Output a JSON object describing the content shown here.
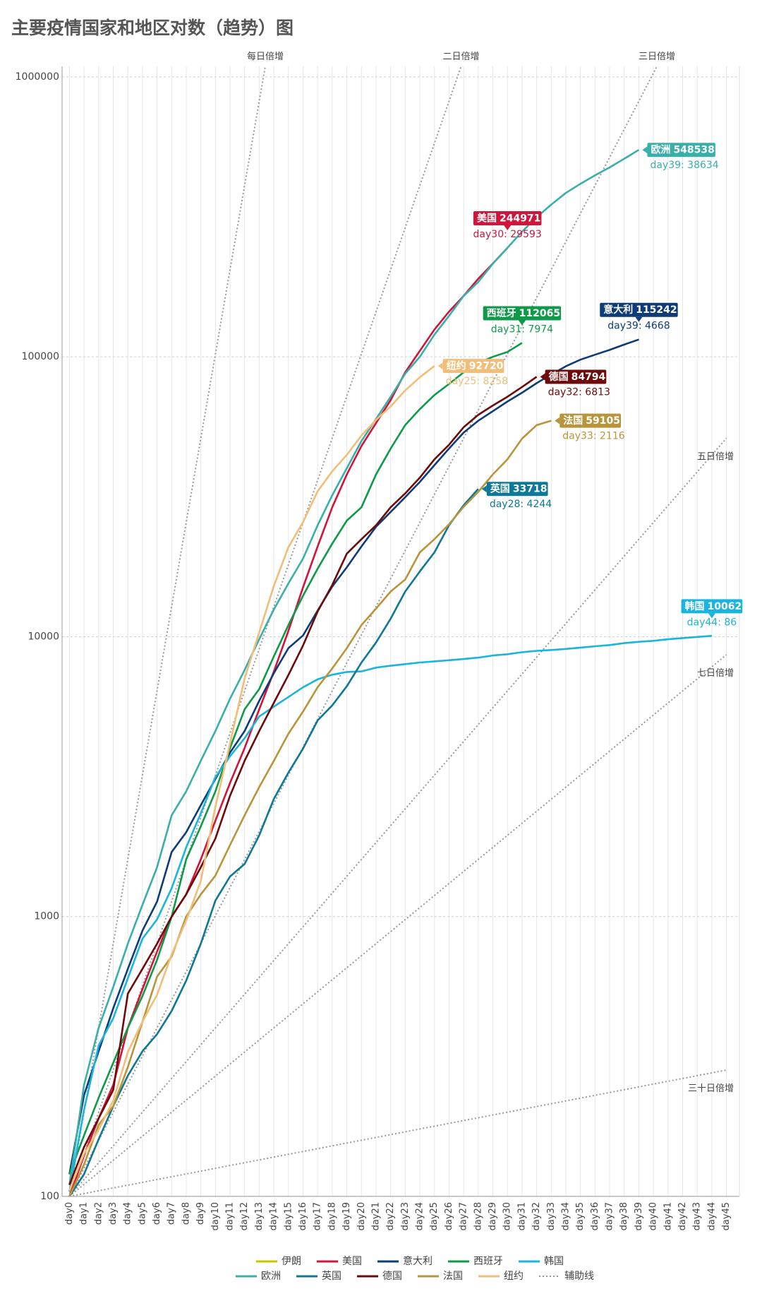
{
  "chart_data": {
    "type": "line",
    "title": "主要疫情国家和地区对数（趋势）图",
    "log_scale": true,
    "ylim": [
      100,
      1000000
    ],
    "yticks": [
      100,
      1000,
      10000,
      100000,
      1000000
    ],
    "grid": true,
    "categories": [
      "day0",
      "day1",
      "day2",
      "day3",
      "day4",
      "day5",
      "day6",
      "day7",
      "day8",
      "day9",
      "day10",
      "day11",
      "day12",
      "day13",
      "day14",
      "day15",
      "day16",
      "day17",
      "day18",
      "day19",
      "day20",
      "day21",
      "day22",
      "day23",
      "day24",
      "day25",
      "day26",
      "day27",
      "day28",
      "day29",
      "day30",
      "day31",
      "day32",
      "day33",
      "day34",
      "day35",
      "day36",
      "day37",
      "day38",
      "day39",
      "day40",
      "day41",
      "day42",
      "day43",
      "day44",
      "day45"
    ],
    "series": [
      {
        "name": "伊朗",
        "color": "#c8c400",
        "values": [
          null,
          null,
          null,
          null,
          null,
          null,
          null,
          null,
          null,
          null,
          null,
          null,
          null,
          null,
          null,
          null,
          null,
          null,
          null,
          null,
          null,
          null,
          null,
          null,
          null,
          null,
          null,
          null,
          null,
          null,
          null,
          null,
          null,
          null,
          null,
          null,
          null,
          null,
          null,
          null,
          null,
          null,
          null,
          null,
          null,
          null
        ]
      },
      {
        "name": "美国",
        "color": "#d2143a",
        "note": "day30: 29593",
        "values": [
          100,
          140,
          190,
          250,
          400,
          550,
          750,
          1000,
          1200,
          1600,
          2200,
          3000,
          4000,
          5500,
          7500,
          10500,
          15000,
          21000,
          29000,
          38000,
          48000,
          58000,
          70000,
          88000,
          105000,
          125000,
          145000,
          165000,
          190000,
          215378,
          244971,
          null,
          null,
          null,
          null,
          null,
          null,
          null,
          null,
          null,
          null,
          null,
          null,
          null,
          null,
          null
        ]
      },
      {
        "name": "意大利",
        "color": "#0d3c78",
        "note": "day39: 4668",
        "values": [
          120,
          230,
          330,
          470,
          650,
          890,
          1130,
          1700,
          2000,
          2500,
          3100,
          3850,
          4600,
          5900,
          7400,
          9100,
          10100,
          12400,
          15100,
          17700,
          21000,
          24700,
          27900,
          31500,
          35700,
          41000,
          47000,
          53600,
          59100,
          63900,
          69200,
          74400,
          80500,
          86500,
          92500,
          97700,
          101700,
          105800,
          110574,
          115242,
          null,
          null,
          null,
          null,
          null,
          null
        ]
      },
      {
        "name": "西班牙",
        "color": "#0f9a4a",
        "note": "day31: 7974",
        "values": [
          120,
          165,
          225,
          300,
          400,
          520,
          700,
          1000,
          1600,
          2100,
          2800,
          4000,
          5500,
          6500,
          8500,
          11000,
          14000,
          17500,
          21500,
          26000,
          29000,
          38000,
          47000,
          57000,
          65000,
          73000,
          80000,
          88000,
          95000,
          100000,
          104091,
          112065,
          null,
          null,
          null,
          null,
          null,
          null,
          null,
          null,
          null,
          null,
          null,
          null,
          null,
          null
        ]
      },
      {
        "name": "韩国",
        "color": "#1ab4dc",
        "note": "day44: 86",
        "values": [
          104,
          204,
          346,
          433,
          602,
          833,
          977,
          1261,
          1766,
          2337,
          3150,
          3736,
          4335,
          5186,
          5621,
          6088,
          6593,
          7041,
          7313,
          7478,
          7513,
          7755,
          7869,
          7979,
          8086,
          8162,
          8236,
          8320,
          8413,
          8565,
          8652,
          8799,
          8897,
          8961,
          9037,
          9137,
          9241,
          9332,
          9478,
          9583,
          9661,
          9786,
          9887,
          9976,
          10062,
          null
        ]
      },
      {
        "name": "欧洲",
        "color": "#3aafa9",
        "note": "day39: 38634",
        "values": [
          110,
          250,
          400,
          560,
          800,
          1100,
          1500,
          2300,
          2800,
          3600,
          4600,
          6000,
          7600,
          9800,
          12500,
          15500,
          19000,
          25000,
          32000,
          40000,
          50000,
          60000,
          72000,
          87000,
          100000,
          120000,
          140000,
          165000,
          185000,
          215000,
          245000,
          280000,
          315000,
          350000,
          385000,
          415000,
          445000,
          475000,
          509904,
          548538,
          null,
          null,
          null,
          null,
          null,
          null
        ]
      },
      {
        "name": "英国",
        "color": "#0f7896",
        "note": "day28: 4244",
        "values": [
          100,
          120,
          160,
          210,
          270,
          330,
          380,
          460,
          590,
          800,
          1140,
          1390,
          1540,
          1950,
          2630,
          3270,
          3980,
          5020,
          5680,
          6650,
          8080,
          9530,
          11600,
          14500,
          17100,
          20000,
          25000,
          29474,
          33718,
          null,
          null,
          null,
          null,
          null,
          null,
          null,
          null,
          null,
          null,
          null,
          null,
          null,
          null,
          null,
          null,
          null
        ]
      },
      {
        "name": "德国",
        "color": "#6e0a0a",
        "note": "day32: 6813",
        "values": [
          110,
          150,
          190,
          240,
          530,
          650,
          800,
          1000,
          1200,
          1500,
          1900,
          2700,
          3600,
          4600,
          5800,
          7300,
          9300,
          12300,
          15300,
          19800,
          22300,
          25000,
          29000,
          32500,
          37000,
          43000,
          48500,
          56000,
          62000,
          67000,
          72000,
          77981,
          84794,
          null,
          null,
          null,
          null,
          null,
          null,
          null,
          null,
          null,
          null,
          null,
          null,
          null
        ]
      },
      {
        "name": "法国",
        "color": "#b8943a",
        "note": "day33: 2116",
        "values": [
          100,
          130,
          180,
          210,
          290,
          420,
          610,
          720,
          1000,
          1200,
          1400,
          1800,
          2300,
          2900,
          3600,
          4500,
          5400,
          6600,
          7700,
          9100,
          11000,
          12600,
          14500,
          16000,
          20000,
          22300,
          25200,
          29100,
          32900,
          38000,
          43000,
          51000,
          56989,
          59105,
          null,
          null,
          null,
          null,
          null,
          null,
          null,
          null,
          null,
          null,
          null,
          null
        ]
      },
      {
        "name": "纽约",
        "color": "#f0be78",
        "note": "day25: 8258",
        "values": [
          105,
          142,
          173,
          220,
          328,
          421,
          525,
          732,
          967,
          1339,
          2469,
          4152,
          7102,
          10356,
          15168,
          20875,
          25665,
          33066,
          38987,
          44635,
          52318,
          59513,
          66497,
          75795,
          84462,
          92720,
          null,
          null,
          null,
          null,
          null,
          null,
          null,
          null,
          null,
          null,
          null,
          null,
          null,
          null,
          null,
          null,
          null,
          null,
          null,
          null
        ]
      }
    ],
    "guide_legend": "辅助线",
    "guide_color": "#999999",
    "guides": [
      {
        "name": "每日倍增",
        "doubling_days": 1
      },
      {
        "name": "二日倍增",
        "doubling_days": 2
      },
      {
        "name": "三日倍增",
        "doubling_days": 3
      },
      {
        "name": "五日倍增",
        "doubling_days": 5
      },
      {
        "name": "七日倍增",
        "doubling_days": 7
      },
      {
        "name": "三十日倍增",
        "doubling_days": 30
      }
    ]
  }
}
